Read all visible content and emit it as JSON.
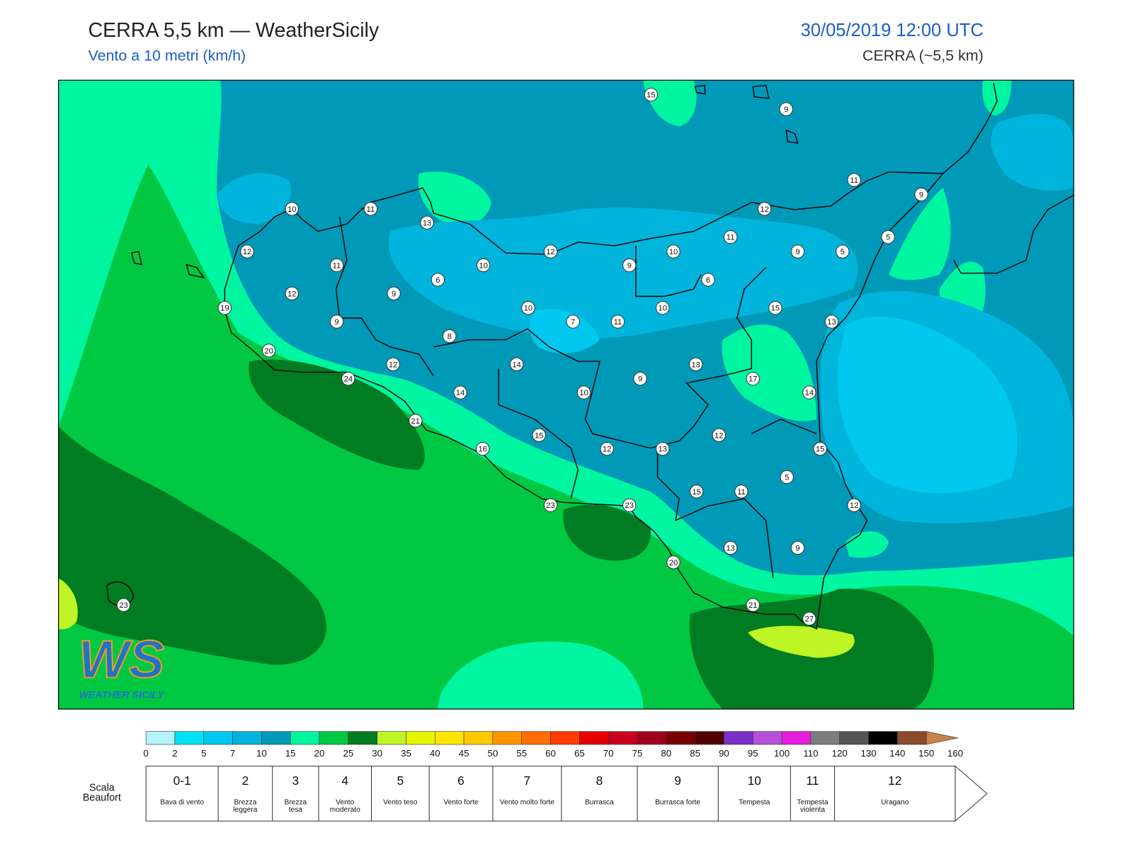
{
  "header": {
    "title": "CERRA 5,5 km — WeatherSicily",
    "subtitle": "Vento a 10 metri (km/h)",
    "date": "30/05/2019 12:00 UTC",
    "model": "CERRA (~5,5 km)"
  },
  "map": {
    "stations": [
      15,
      9,
      11,
      9,
      10,
      11,
      12,
      13,
      5,
      11,
      12,
      12,
      10,
      9,
      5,
      11,
      10,
      9,
      6,
      6,
      12,
      9,
      19,
      10,
      10,
      15,
      9,
      7,
      11,
      13,
      8,
      20,
      12,
      14,
      13,
      24,
      9,
      17,
      14,
      10,
      14,
      21,
      12,
      15,
      16,
      12,
      13,
      15,
      5,
      15,
      11,
      23,
      23,
      12,
      13,
      9,
      20,
      23,
      21,
      27
    ]
  },
  "logo": {
    "mark": "WS",
    "name": "WEATHER SICILY"
  },
  "colorbar": {
    "ticks": [
      0,
      2,
      5,
      7,
      10,
      15,
      20,
      25,
      30,
      35,
      40,
      45,
      50,
      55,
      60,
      65,
      70,
      75,
      80,
      85,
      90,
      95,
      100,
      110,
      120,
      130,
      140,
      150,
      160
    ],
    "colors": [
      "#b3f3fb",
      "#00e1f5",
      "#00c8ef",
      "#00b4dc",
      "#0099b8",
      "#00f5a0",
      "#00c843",
      "#007d22",
      "#bff526",
      "#e6f500",
      "#ffe600",
      "#ffc800",
      "#ff9600",
      "#ff6e00",
      "#ff3c00",
      "#e60000",
      "#c8001e",
      "#a0001e",
      "#780000",
      "#500000",
      "#7a2ec8",
      "#b450dc",
      "#e61edc",
      "#7d7d7d",
      "#555555",
      "#000000",
      "#8b4a2a",
      "#c8824a"
    ]
  },
  "beaufort": {
    "label": "Scala Beaufort",
    "forces": [
      {
        "force": "0-1",
        "name": "Bava di vento"
      },
      {
        "force": 2,
        "name": "Brezza leggera"
      },
      {
        "force": 3,
        "name": "Brezza tesa"
      },
      {
        "force": 4,
        "name": "Vento moderato"
      },
      {
        "force": 5,
        "name": "Vento teso"
      },
      {
        "force": 6,
        "name": "Vento forte"
      },
      {
        "force": 7,
        "name": "Vento molto forte"
      },
      {
        "force": 8,
        "name": "Burrasca"
      },
      {
        "force": 9,
        "name": "Burrasca forte"
      },
      {
        "force": 10,
        "name": "Tempesta"
      },
      {
        "force": 11,
        "name": "Tempesta violenta"
      },
      {
        "force": 12,
        "name": "Uragano"
      }
    ]
  }
}
